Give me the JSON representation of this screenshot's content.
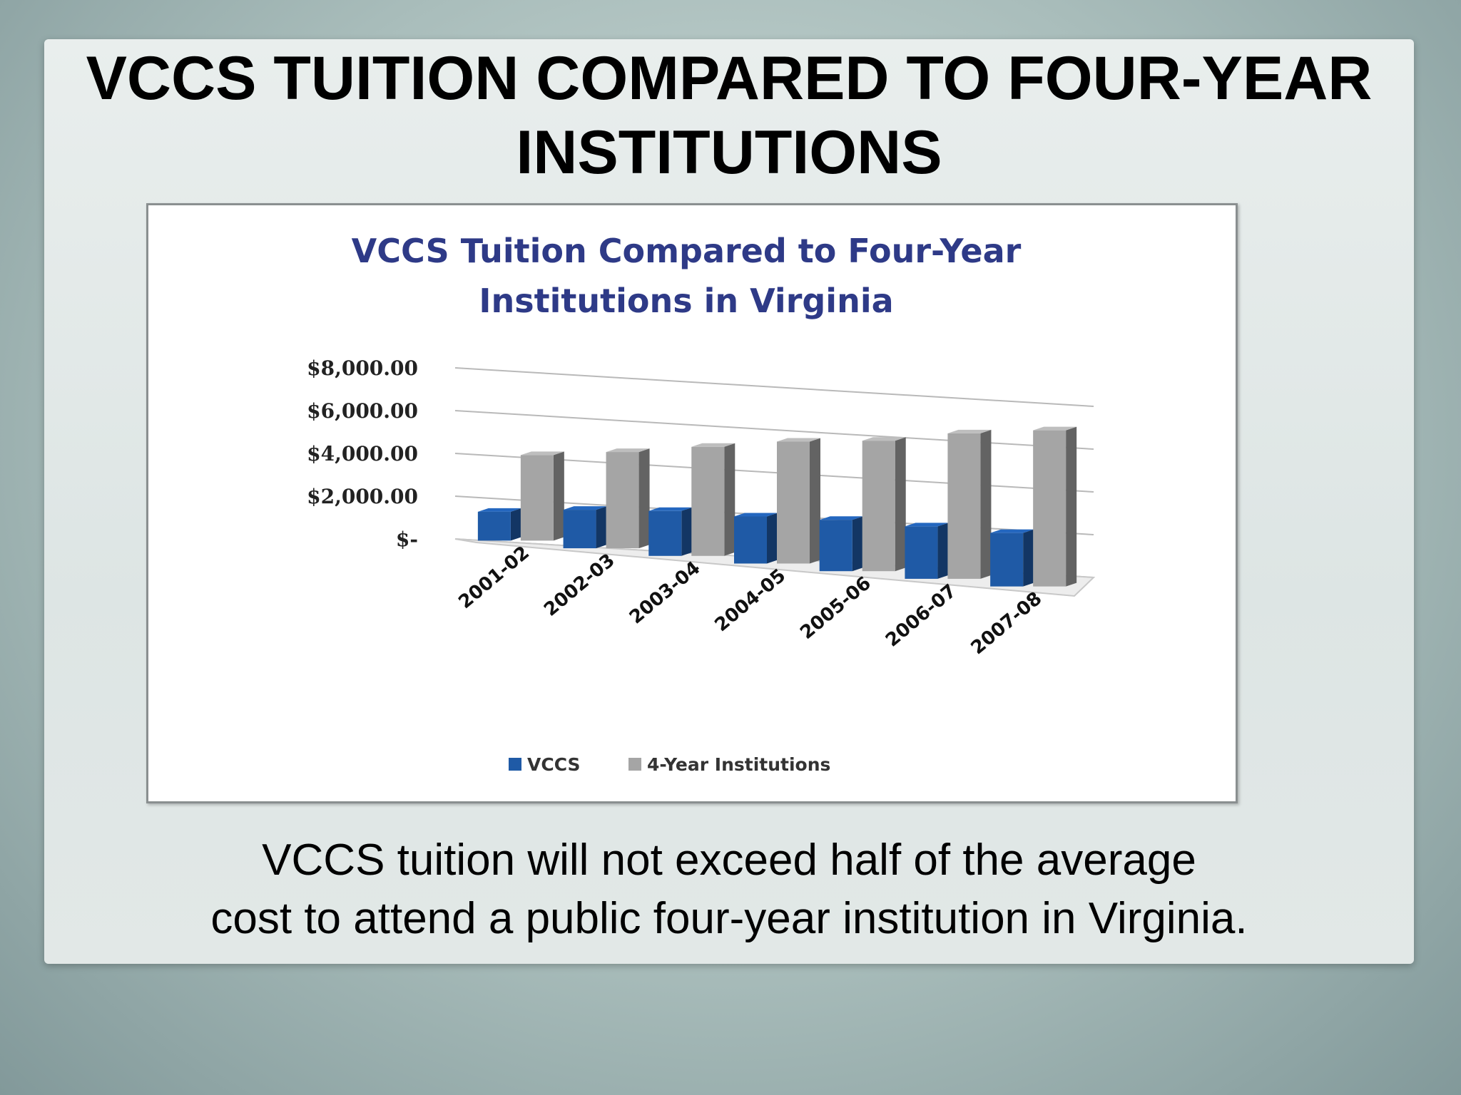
{
  "slide": {
    "title": "VCCS TUITION COMPARED TO FOUR-YEAR INSTITUTIONS",
    "caption_line1": "VCCS tuition will not exceed half of the average",
    "caption_line2": "cost to attend a public four-year institution in Virginia."
  },
  "chart_data": {
    "type": "bar",
    "title_line1": "VCCS Tuition Compared to Four-Year",
    "title_line2": "Institutions in Virginia",
    "categories": [
      "2001-02",
      "2002-03",
      "2003-04",
      "2004-05",
      "2005-06",
      "2006-07",
      "2007-08"
    ],
    "series": [
      {
        "name": "VCCS",
        "values": [
          1350,
          1800,
          2100,
          2200,
          2400,
          2450,
          2500
        ],
        "color": "#1f5aa6"
      },
      {
        "name": "4-Year Institutions",
        "values": [
          4000,
          4500,
          5100,
          5700,
          6100,
          6800,
          7300
        ],
        "color": "#a5a5a5"
      }
    ],
    "y_ticks": [
      "$-",
      "$2,000.00",
      "$4,000.00",
      "$6,000.00",
      "$8,000.00"
    ],
    "ylim": [
      0,
      8000
    ],
    "legend_position": "bottom",
    "gridlines": true,
    "style": "3d-clustered-column"
  }
}
